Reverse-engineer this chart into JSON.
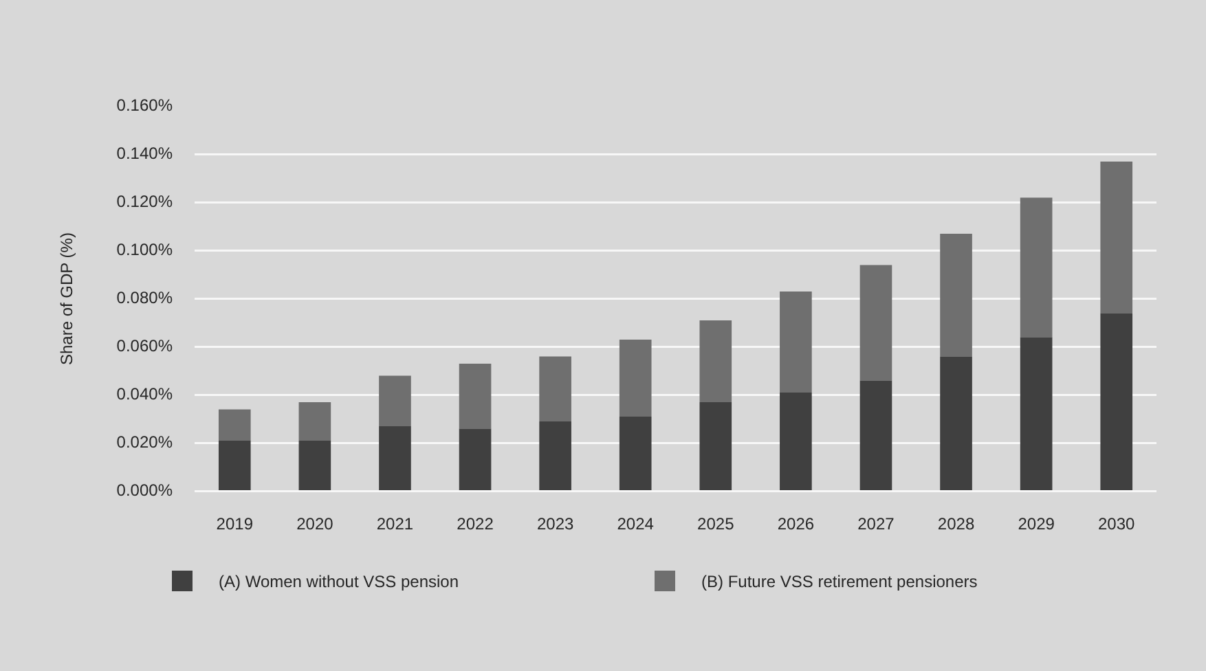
{
  "chart_data": {
    "type": "bar",
    "stacked": true,
    "ylabel": "Share of GDP (%)",
    "categories": [
      "2019",
      "2020",
      "2021",
      "2022",
      "2023",
      "2024",
      "2025",
      "2026",
      "2027",
      "2028",
      "2029",
      "2030"
    ],
    "series": [
      {
        "name": "(A) Women without VSS pension",
        "color": "#404040",
        "values": [
          0.021,
          0.021,
          0.027,
          0.026,
          0.029,
          0.031,
          0.037,
          0.041,
          0.046,
          0.056,
          0.064,
          0.074
        ]
      },
      {
        "name": "(B) Future VSS retirement pensioners",
        "color": "#6f6f6f",
        "values": [
          0.013,
          0.016,
          0.021,
          0.027,
          0.027,
          0.032,
          0.034,
          0.042,
          0.048,
          0.051,
          0.058,
          0.063
        ]
      }
    ],
    "ylim": [
      0,
      0.16
    ],
    "yticks": [
      {
        "value": 0,
        "label": "0.000%"
      },
      {
        "value": 0.02,
        "label": "0.020%"
      },
      {
        "value": 0.04,
        "label": "0.040%"
      },
      {
        "value": 0.06,
        "label": "0.060%"
      },
      {
        "value": 0.08,
        "label": "0.080%"
      },
      {
        "value": 0.1,
        "label": "0.100%"
      },
      {
        "value": 0.12,
        "label": "0.120%"
      },
      {
        "value": 0.14,
        "label": "0.140%"
      },
      {
        "value": 0.16,
        "label": "0.160%"
      }
    ],
    "grid": "y",
    "legend": "bottom"
  }
}
